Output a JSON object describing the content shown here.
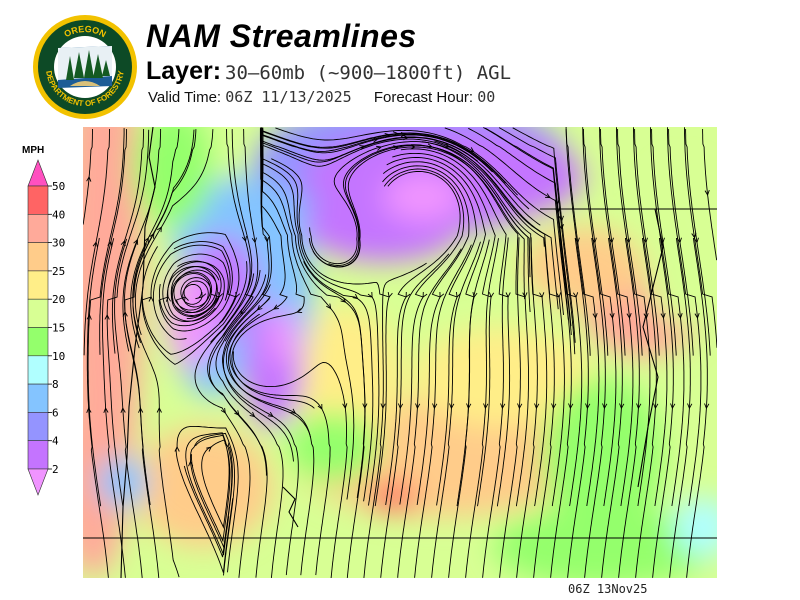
{
  "logo": {
    "top_text": "OREGON",
    "bottom_text": "DEPARTMENT OF FORESTRY"
  },
  "header": {
    "title": "NAM Streamlines",
    "layer_label": "Layer:",
    "layer_value": "30–60mb (~900–1800ft) AGL",
    "valid_time_label": "Valid Time:",
    "valid_time_value": "06Z 11/13/2025",
    "forecast_hour_label": "Forecast Hour:",
    "forecast_hour_value": "00"
  },
  "legend": {
    "units": "MPH",
    "levels": [
      "50",
      "40",
      "30",
      "25",
      "20",
      "15",
      "10",
      "8",
      "6",
      "4",
      "2"
    ],
    "colors": [
      "#ff50c0",
      "#ff6464",
      "#ffaa9a",
      "#ffcc8a",
      "#ffee88",
      "#d8ff94",
      "#94ff6c",
      "#b0ffff",
      "#84c4ff",
      "#9494ff",
      "#c474ff",
      "#f094ff"
    ]
  },
  "map": {
    "field": "wind speed with streamlines",
    "units": "MPH"
  },
  "footer": {
    "stamp": "06Z 13Nov25"
  }
}
